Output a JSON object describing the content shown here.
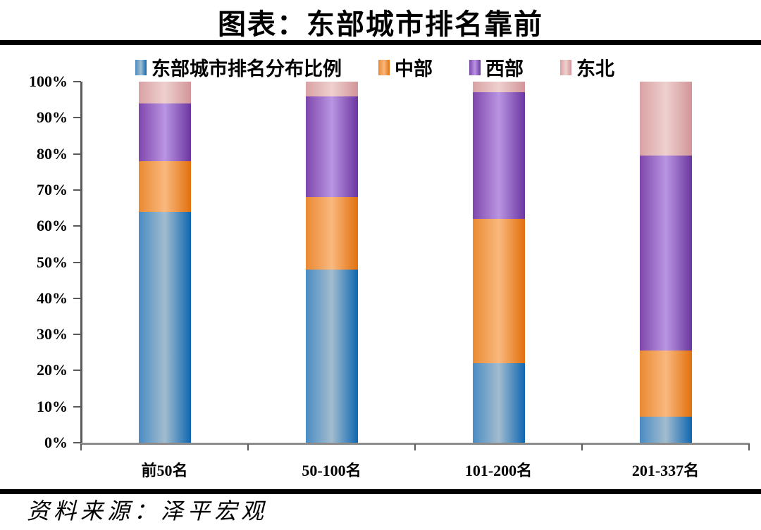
{
  "page": {
    "title": "图表：东部城市排名靠前",
    "source": "资料来源：泽平宏观"
  },
  "chart_data": {
    "type": "bar",
    "stacked": true,
    "stacked_unit": "percent",
    "title": "图表：东部城市排名靠前",
    "categories": [
      "前50名",
      "50-100名",
      "101-200名",
      "201-337名"
    ],
    "series": [
      {
        "name": "东部城市排名分布比例",
        "values": [
          64,
          48,
          22,
          7.3
        ],
        "color": {
          "left": "#4a8cc2",
          "mid": "#a2bccf",
          "right": "#0f67b1"
        }
      },
      {
        "name": "中部",
        "values": [
          14,
          20,
          40,
          18.2
        ],
        "color": {
          "left": "#ea8a33",
          "mid": "#f9b87e",
          "right": "#e2700c"
        }
      },
      {
        "name": "西部",
        "values": [
          16,
          28,
          35,
          54
        ],
        "color": {
          "left": "#7f47ac",
          "mid": "#b995e2",
          "right": "#6b36a0"
        }
      },
      {
        "name": "东北",
        "values": [
          6,
          4,
          3,
          20.5
        ],
        "color": {
          "left": "#d9a2a4",
          "mid": "#eed0cf",
          "right": "#d29598"
        }
      }
    ],
    "xlabel": "",
    "ylabel": "",
    "ylim": [
      0,
      100
    ],
    "yticks": [
      "0%",
      "10%",
      "20%",
      "30%",
      "40%",
      "50%",
      "60%",
      "70%",
      "80%",
      "90%",
      "100%"
    ],
    "grid": false,
    "legend_position": "top"
  }
}
